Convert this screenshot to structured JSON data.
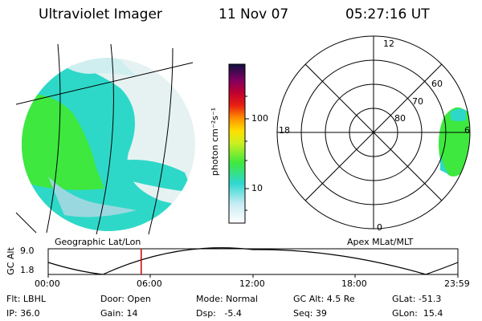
{
  "header": {
    "instrument": "Ultraviolet Imager",
    "date": "11 Nov 07",
    "time": "05:27:16 UT"
  },
  "left_panel": {
    "caption": "Geographic Lat/Lon"
  },
  "colorbar": {
    "unit": "photon cm⁻²s⁻¹",
    "ticks": [
      "100",
      "10"
    ]
  },
  "right_panel": {
    "caption": "Apex MLat/MLT",
    "mlt_labels": {
      "top": "12",
      "left": "18",
      "right": "6",
      "bottom": "0"
    },
    "lat_labels": [
      "60",
      "70",
      "80"
    ]
  },
  "altitude_plot": {
    "ylabel": "GC Alt",
    "yticks": [
      "9.0",
      "1.8"
    ],
    "xticks": [
      "00:00",
      "06:00",
      "12:00",
      "18:00",
      "23:59"
    ],
    "current_time_fraction": 0.227
  },
  "status": {
    "flt": "Flt: LBHL",
    "ip": "IP: 36.0",
    "door": "Door: Open",
    "gain": "Gain: 14",
    "mode": "Mode: Normal",
    "dsp": "Dsp:   -5.4",
    "gc_alt": "GC Alt: 4.5 Re",
    "seq": "Seq: 39",
    "glat": "GLat: -51.3",
    "glon": "GLon:  15.4"
  },
  "colors": {
    "low": "#d8ecf0",
    "mid": "#2ed8c8",
    "high": "#3ee83e",
    "marker": "#cc0000"
  }
}
